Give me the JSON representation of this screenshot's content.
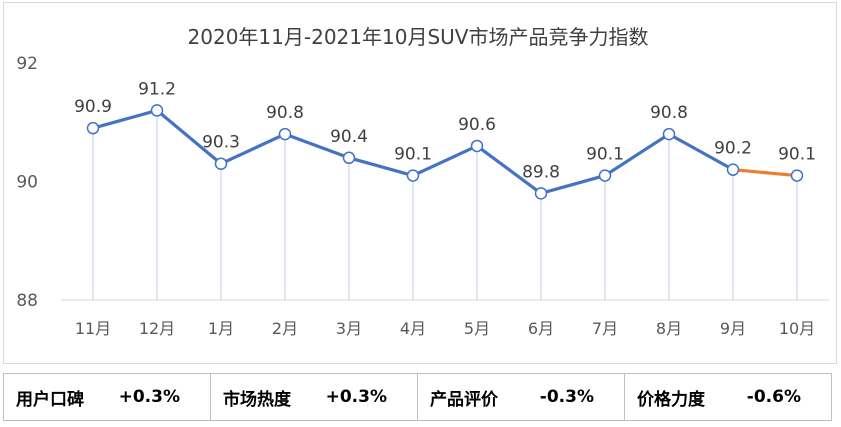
{
  "chart_data": {
    "type": "line",
    "title": "2020年11月-2021年10月SUV市场产品竞争力指数",
    "categories": [
      "11月",
      "12月",
      "1月",
      "2月",
      "3月",
      "4月",
      "5月",
      "6月",
      "7月",
      "8月",
      "9月",
      "10月"
    ],
    "values": [
      90.9,
      91.2,
      90.3,
      90.8,
      90.4,
      90.1,
      90.6,
      89.8,
      90.1,
      90.8,
      90.2,
      90.1
    ],
    "value_labels": [
      "90.9",
      "91.2",
      "90.3",
      "90.8",
      "90.4",
      "90.1",
      "90.6",
      "89.8",
      "90.1",
      "90.8",
      "90.2",
      "90.1"
    ],
    "ylim": [
      88,
      92
    ],
    "yticks": [
      "88",
      "90",
      "92"
    ],
    "ytick_values": [
      88,
      90,
      92
    ],
    "xlabel": "",
    "ylabel": "",
    "series_color": "#4472c4",
    "highlight_color": "#ed7d31",
    "drop_line_color": "#c9d7ea"
  },
  "summary": [
    {
      "label": "用户口碑",
      "value": "+0.3%"
    },
    {
      "label": "市场热度",
      "value": "+0.3%"
    },
    {
      "label": "产品评价",
      "value": "-0.3%"
    },
    {
      "label": "价格力度",
      "value": "-0.6%"
    }
  ]
}
